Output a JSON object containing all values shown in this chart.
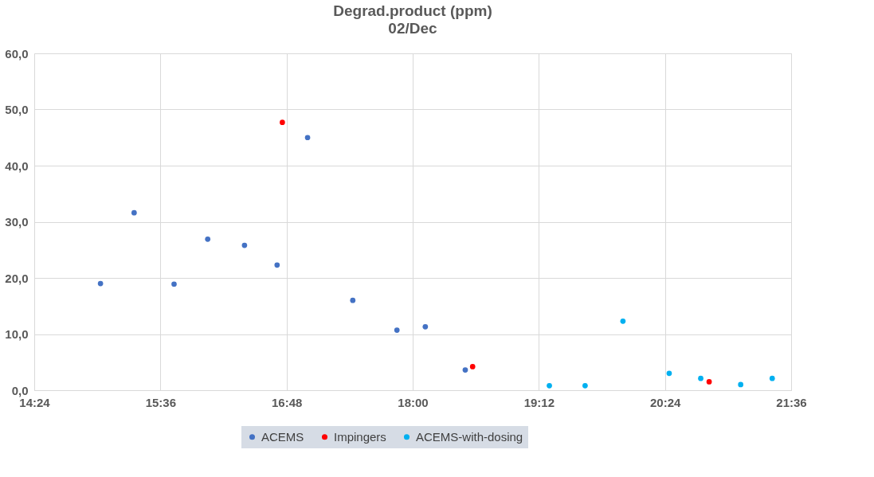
{
  "chart_data": {
    "type": "scatter",
    "title": "Degrad.product (ppm)",
    "subtitle": "02/Dec",
    "xlim": [
      14.4,
      21.6
    ],
    "xticks": [
      {
        "value": 14.4,
        "label": "14:24"
      },
      {
        "value": 15.6,
        "label": "15:36"
      },
      {
        "value": 16.8,
        "label": "16:48"
      },
      {
        "value": 18.0,
        "label": "18:00"
      },
      {
        "value": 19.2,
        "label": "19:12"
      },
      {
        "value": 20.4,
        "label": "20:24"
      },
      {
        "value": 21.6,
        "label": "21:36"
      }
    ],
    "ylim": [
      0,
      60
    ],
    "yticks": [
      {
        "value": 0,
        "label": "0,0"
      },
      {
        "value": 10,
        "label": "10,0"
      },
      {
        "value": 20,
        "label": "20,0"
      },
      {
        "value": 30,
        "label": "30,0"
      },
      {
        "value": 40,
        "label": "40,0"
      },
      {
        "value": 50,
        "label": "50,0"
      },
      {
        "value": 60,
        "label": "60,0"
      }
    ],
    "grid": true,
    "legend": "bottom",
    "marker": "circle",
    "series": [
      {
        "name": "ACEMS",
        "color": "#4472c4",
        "x": [
          15.03,
          15.35,
          15.73,
          16.05,
          16.4,
          16.71,
          17.0,
          17.43,
          17.85,
          18.12,
          18.5
        ],
        "values": [
          19.0,
          31.6,
          18.9,
          26.9,
          25.8,
          22.3,
          45.0,
          16.0,
          10.7,
          11.3,
          3.6
        ]
      },
      {
        "name": "Impingers",
        "color": "#ff0000",
        "x": [
          16.76,
          18.57,
          20.82
        ],
        "values": [
          47.7,
          4.2,
          1.5
        ]
      },
      {
        "name": "ACEMS-with-dosing",
        "color": "#00b0f0",
        "x": [
          19.3,
          19.64,
          20.0,
          20.44,
          20.74,
          21.12,
          21.42
        ],
        "values": [
          0.8,
          0.8,
          12.3,
          3.0,
          2.1,
          1.0,
          2.1
        ]
      }
    ]
  }
}
